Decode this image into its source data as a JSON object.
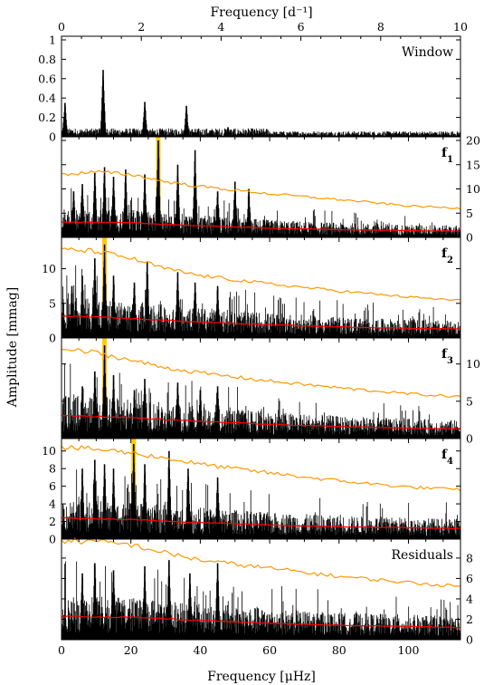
{
  "chart_data": {
    "type": "line",
    "title": "",
    "xlabel_bottom": "Frequency [μHz]",
    "xlabel_top": "Frequency [d⁻¹]",
    "ylabel": "Amplitude [mmag]",
    "xlim_uhz": [
      0,
      115
    ],
    "xlim_cd": [
      0,
      10
    ],
    "x_ticks_bottom": [
      "0",
      "20",
      "40",
      "60",
      "80",
      "100"
    ],
    "x_ticks_top": [
      "0",
      "2",
      "4",
      "6",
      "8",
      "10"
    ],
    "colors": {
      "spectrum": "#000000",
      "noise_upper": "#ff9900",
      "noise_lower": "#ff0000",
      "highlight": "#ffcc00"
    },
    "panels": [
      {
        "label": "Window",
        "subscript": "",
        "y_side": "left",
        "ylim": [
          0,
          1
        ],
        "y_ticks": [
          "0",
          "0.2",
          "0.4",
          "0.6",
          "0.8",
          "1"
        ],
        "peaks": [
          {
            "x": 12.0,
            "y": 0.69
          },
          {
            "x": 24.0,
            "y": 0.36
          },
          {
            "x": 36.0,
            "y": 0.32
          },
          {
            "x": 48.0,
            "y": 0.1
          },
          {
            "x": 1.0,
            "y": 0.35
          }
        ],
        "highlight_x": null,
        "noise_upper": null,
        "noise_lower": null
      },
      {
        "label": "f",
        "subscript": "1",
        "y_side": "right",
        "ylim": [
          0,
          20
        ],
        "y_ticks": [
          "0",
          "5",
          "10",
          "15",
          "20"
        ],
        "peaks": [
          {
            "x": 27.9,
            "y": 20.5
          },
          {
            "x": 38.5,
            "y": 18.0
          },
          {
            "x": 12.4,
            "y": 14.5
          },
          {
            "x": 9.6,
            "y": 13.5
          },
          {
            "x": 18.5,
            "y": 14.0
          },
          {
            "x": 33.5,
            "y": 15.0
          },
          {
            "x": 24.0,
            "y": 13.0
          },
          {
            "x": 15.0,
            "y": 12.5
          },
          {
            "x": 50.0,
            "y": 11.5
          },
          {
            "x": 45.0,
            "y": 9.5
          },
          {
            "x": 6.0,
            "y": 11.0
          },
          {
            "x": 3.5,
            "y": 9.5
          },
          {
            "x": 54.0,
            "y": 10.0
          }
        ],
        "highlight_x": 27.9,
        "noise_upper": [
          [
            0,
            13.0
          ],
          [
            10,
            13.5
          ],
          [
            20,
            13.0
          ],
          [
            30,
            11.5
          ],
          [
            40,
            10.5
          ],
          [
            60,
            9.0
          ],
          [
            80,
            7.8
          ],
          [
            100,
            6.5
          ],
          [
            115,
            6.0
          ]
        ],
        "noise_lower": [
          [
            0,
            3.2
          ],
          [
            20,
            3.0
          ],
          [
            40,
            2.4
          ],
          [
            60,
            1.9
          ],
          [
            80,
            1.6
          ],
          [
            100,
            1.4
          ],
          [
            115,
            1.3
          ]
        ]
      },
      {
        "label": "f",
        "subscript": "2",
        "y_side": "left",
        "ylim": [
          0,
          14
        ],
        "y_ticks": [
          "0",
          "5",
          "10"
        ],
        "peaks": [
          {
            "x": 12.4,
            "y": 13.5
          },
          {
            "x": 24.7,
            "y": 11.0
          },
          {
            "x": 9.6,
            "y": 11.5
          },
          {
            "x": 15.0,
            "y": 9.0
          },
          {
            "x": 33.5,
            "y": 9.5
          },
          {
            "x": 21.0,
            "y": 8.0
          },
          {
            "x": 6.0,
            "y": 9.0
          },
          {
            "x": 38.5,
            "y": 8.0
          },
          {
            "x": 45.0,
            "y": 7.5
          },
          {
            "x": 3.0,
            "y": 7.5
          }
        ],
        "highlight_x": 12.4,
        "noise_upper": [
          [
            0,
            12.8
          ],
          [
            10,
            12.5
          ],
          [
            20,
            11.5
          ],
          [
            30,
            10.0
          ],
          [
            40,
            9.0
          ],
          [
            60,
            7.8
          ],
          [
            80,
            6.8
          ],
          [
            100,
            5.9
          ],
          [
            115,
            5.4
          ]
        ],
        "noise_lower": [
          [
            0,
            3.2
          ],
          [
            20,
            2.8
          ],
          [
            40,
            2.3
          ],
          [
            60,
            1.9
          ],
          [
            80,
            1.6
          ],
          [
            100,
            1.4
          ],
          [
            115,
            1.3
          ]
        ]
      },
      {
        "label": "f",
        "subscript": "3",
        "y_side": "right",
        "ylim": [
          0,
          13
        ],
        "y_ticks": [
          "0",
          "5",
          "10"
        ],
        "peaks": [
          {
            "x": 12.4,
            "y": 12.5
          },
          {
            "x": 9.6,
            "y": 9.0
          },
          {
            "x": 15.0,
            "y": 8.5
          },
          {
            "x": 24.0,
            "y": 8.0
          },
          {
            "x": 33.5,
            "y": 7.5
          },
          {
            "x": 6.0,
            "y": 7.0
          },
          {
            "x": 45.0,
            "y": 7.0
          },
          {
            "x": 21.0,
            "y": 6.5
          },
          {
            "x": 40.0,
            "y": 6.5
          }
        ],
        "highlight_x": 12.4,
        "noise_upper": [
          [
            0,
            12.0
          ],
          [
            10,
            11.5
          ],
          [
            20,
            10.5
          ],
          [
            30,
            9.5
          ],
          [
            40,
            8.8
          ],
          [
            60,
            7.7
          ],
          [
            80,
            6.8
          ],
          [
            100,
            6.0
          ],
          [
            115,
            5.6
          ]
        ],
        "noise_lower": [
          [
            0,
            3.1
          ],
          [
            20,
            2.8
          ],
          [
            40,
            2.3
          ],
          [
            60,
            1.9
          ],
          [
            80,
            1.6
          ],
          [
            100,
            1.4
          ],
          [
            115,
            1.3
          ]
        ]
      },
      {
        "label": "f",
        "subscript": "4",
        "y_side": "left",
        "ylim": [
          0,
          11
        ],
        "y_ticks": [
          "0",
          "2",
          "4",
          "6",
          "8",
          "10"
        ],
        "peaks": [
          {
            "x": 20.8,
            "y": 10.8
          },
          {
            "x": 9.6,
            "y": 9.0
          },
          {
            "x": 12.4,
            "y": 8.5
          },
          {
            "x": 31.0,
            "y": 10.0
          },
          {
            "x": 15.0,
            "y": 8.0
          },
          {
            "x": 24.0,
            "y": 8.5
          },
          {
            "x": 6.0,
            "y": 8.0
          },
          {
            "x": 36.5,
            "y": 8.0
          },
          {
            "x": 45.0,
            "y": 7.0
          }
        ],
        "highlight_x": 20.8,
        "noise_upper": [
          [
            0,
            10.4
          ],
          [
            10,
            10.2
          ],
          [
            20,
            9.8
          ],
          [
            30,
            9.2
          ],
          [
            40,
            8.5
          ],
          [
            60,
            7.5
          ],
          [
            80,
            6.6
          ],
          [
            100,
            5.9
          ],
          [
            115,
            5.6
          ]
        ],
        "noise_lower": [
          [
            0,
            2.4
          ],
          [
            20,
            2.2
          ],
          [
            40,
            1.9
          ],
          [
            60,
            1.6
          ],
          [
            80,
            1.4
          ],
          [
            100,
            1.3
          ],
          [
            115,
            1.2
          ]
        ]
      },
      {
        "label": "Residuals",
        "subscript": "",
        "y_side": "right",
        "ylim": [
          0,
          9.5
        ],
        "y_ticks": [
          "0",
          "2",
          "4",
          "6",
          "8"
        ],
        "peaks": [
          {
            "x": 31.0,
            "y": 7.8
          },
          {
            "x": 9.6,
            "y": 7.5
          },
          {
            "x": 24.0,
            "y": 7.2
          },
          {
            "x": 45.0,
            "y": 7.5
          },
          {
            "x": 15.0,
            "y": 6.8
          },
          {
            "x": 37.0,
            "y": 6.5
          },
          {
            "x": 6.0,
            "y": 6.5
          }
        ],
        "highlight_x": null,
        "noise_upper": [
          [
            0,
            9.7
          ],
          [
            10,
            9.6
          ],
          [
            20,
            9.3
          ],
          [
            30,
            8.5
          ],
          [
            40,
            7.8
          ],
          [
            60,
            7.0
          ],
          [
            80,
            6.2
          ],
          [
            100,
            5.6
          ],
          [
            115,
            5.2
          ]
        ],
        "noise_lower": [
          [
            0,
            2.3
          ],
          [
            20,
            2.2
          ],
          [
            40,
            1.9
          ],
          [
            60,
            1.6
          ],
          [
            80,
            1.4
          ],
          [
            100,
            1.3
          ],
          [
            115,
            1.2
          ]
        ]
      }
    ]
  }
}
